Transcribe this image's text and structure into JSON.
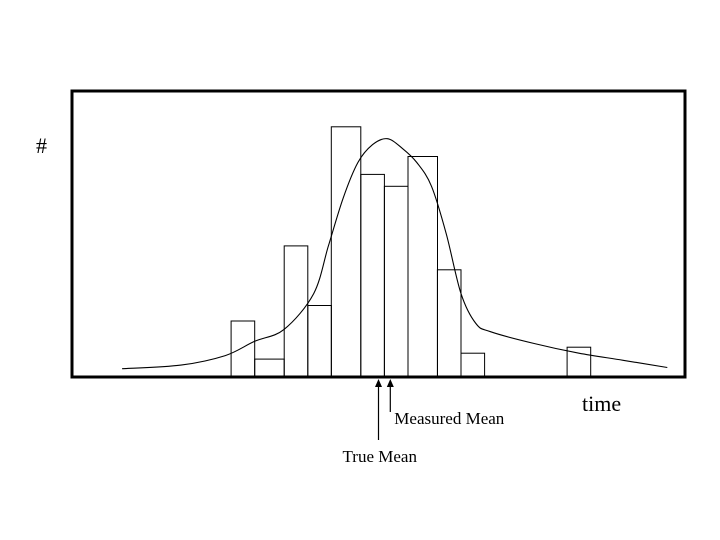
{
  "chart_data": {
    "type": "bar",
    "title": "",
    "xlabel": "time",
    "ylabel": "#",
    "grid": false,
    "legend": "none",
    "bars": [
      {
        "x0": 4.2,
        "x1": 5.0,
        "value": 47
      },
      {
        "x0": 5.0,
        "x1": 6.0,
        "value": 15
      },
      {
        "x0": 6.0,
        "x1": 6.8,
        "value": 110
      },
      {
        "x0": 6.8,
        "x1": 7.6,
        "value": 60
      },
      {
        "x0": 7.6,
        "x1": 8.6,
        "value": 210
      },
      {
        "x0": 8.6,
        "x1": 9.4,
        "value": 170
      },
      {
        "x0": 9.4,
        "x1": 10.2,
        "value": 160
      },
      {
        "x0": 10.2,
        "x1": 11.2,
        "value": 185
      },
      {
        "x0": 11.2,
        "x1": 12.0,
        "value": 90
      },
      {
        "x0": 12.0,
        "x1": 12.8,
        "value": 20
      },
      {
        "x0": 15.6,
        "x1": 16.4,
        "value": 25
      }
    ],
    "curve": {
      "x": [
        0.5,
        2.5,
        4.0,
        5.0,
        6.0,
        7.0,
        7.5,
        8.0,
        8.5,
        9.0,
        9.5,
        10.0,
        10.5,
        11.0,
        11.5,
        12.0,
        12.5,
        13.0,
        14.5,
        16.0,
        17.5,
        19.0
      ],
      "y": [
        7,
        10,
        18,
        30,
        40,
        70,
        110,
        150,
        180,
        195,
        200,
        192,
        180,
        160,
        120,
        70,
        45,
        38,
        28,
        20,
        14,
        8
      ]
    },
    "xlim": [
      -1.2,
      19.6
    ],
    "ylim": [
      0,
      240
    ],
    "annotations": [
      {
        "text": "Measured Mean",
        "x": 9.6
      },
      {
        "text": "True Mean",
        "x": 9.2
      }
    ]
  }
}
